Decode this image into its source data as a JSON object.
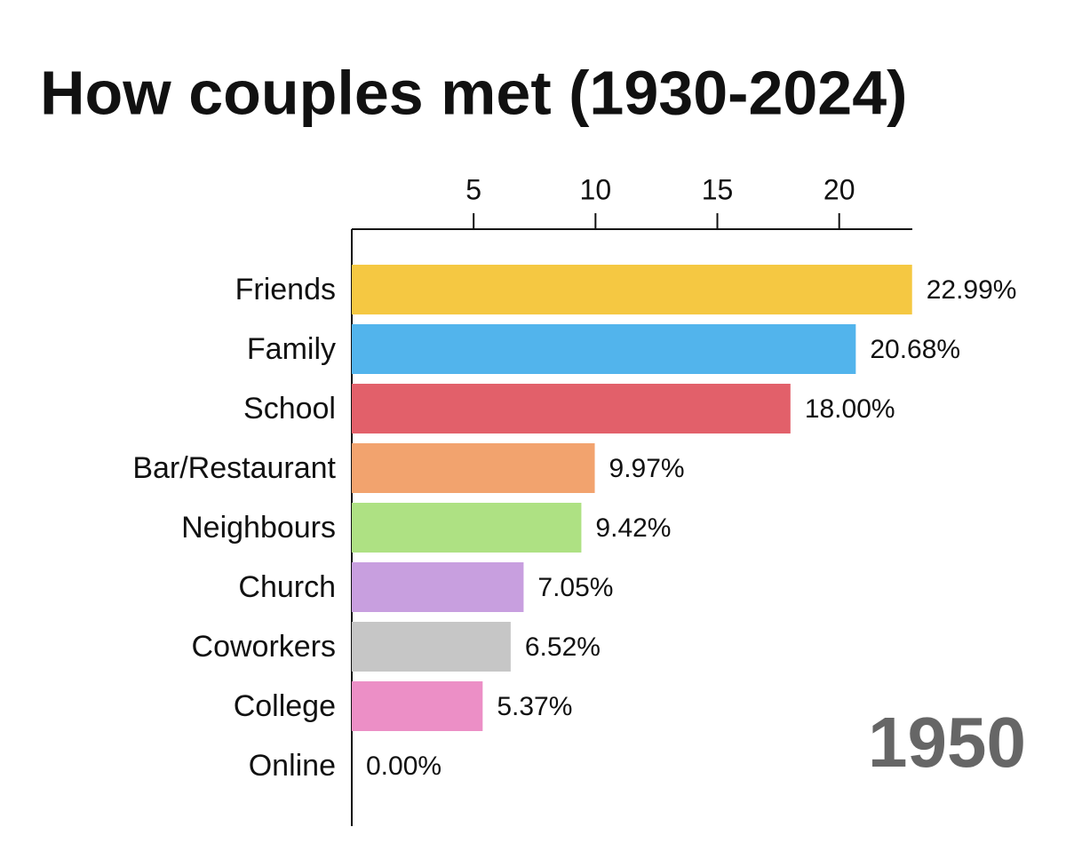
{
  "chart_data": {
    "type": "bar",
    "orientation": "horizontal",
    "title": "How couples met (1930-2024)",
    "annotation": "1950",
    "categories": [
      "Friends",
      "Family",
      "School",
      "Bar/Restaurant",
      "Neighbours",
      "Church",
      "Coworkers",
      "College",
      "Online"
    ],
    "values": [
      22.99,
      20.68,
      18.0,
      9.97,
      9.42,
      7.05,
      6.52,
      5.37,
      0.0
    ],
    "value_labels": [
      "22.99%",
      "20.68%",
      "18.00%",
      "9.97%",
      "9.42%",
      "7.05%",
      "6.52%",
      "5.37%",
      "0.00%"
    ],
    "colors": [
      "#f5c842",
      "#52b4ec",
      "#e2606a",
      "#f2a36e",
      "#aee183",
      "#c89fdf",
      "#c6c6c6",
      "#ec8fc6",
      "#999999"
    ],
    "xlim": [
      0,
      23
    ],
    "xticks": [
      5,
      10,
      15,
      20
    ],
    "grid": false
  }
}
